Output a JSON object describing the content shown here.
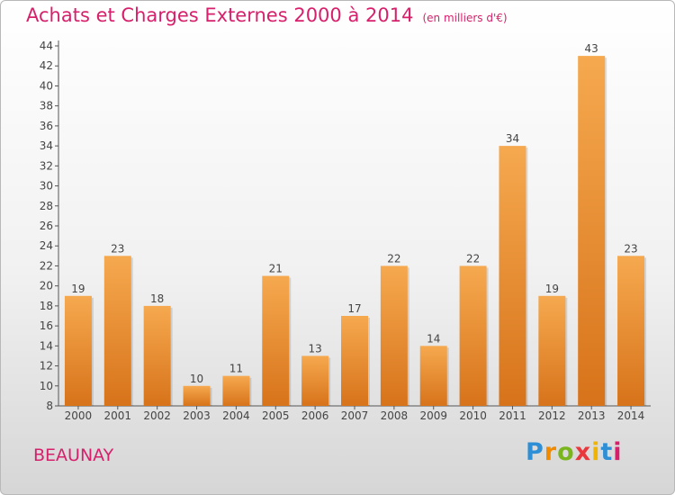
{
  "header": {
    "title": "Achats et Charges Externes 2000 à 2014",
    "subtitle": "(en milliers d'€)"
  },
  "commune": "BEAUNAY",
  "logo": {
    "text": "Proxiti",
    "letter_colors": [
      "#2e8fd6",
      "#f08a00",
      "#7ab51d",
      "#e8383d",
      "#f0b400",
      "#2e8fd6",
      "#d7206b"
    ]
  },
  "colors": {
    "bar_top": "#f6a94f",
    "bar_bottom": "#d7731a",
    "title": "#d7206b"
  },
  "chart_data": {
    "type": "bar",
    "title": "Achats et Charges Externes 2000 à 2014",
    "subtitle": "(en milliers d'€)",
    "categories": [
      "2000",
      "2001",
      "2002",
      "2003",
      "2004",
      "2005",
      "2006",
      "2007",
      "2008",
      "2009",
      "2010",
      "2011",
      "2012",
      "2013",
      "2014"
    ],
    "values": [
      19,
      23,
      18,
      10,
      11,
      21,
      13,
      17,
      22,
      14,
      22,
      34,
      19,
      43,
      23
    ],
    "ylim": [
      8,
      44
    ],
    "yticks": [
      8,
      10,
      12,
      14,
      16,
      18,
      20,
      22,
      24,
      26,
      28,
      30,
      32,
      34,
      36,
      38,
      40,
      42,
      44
    ],
    "grid": false,
    "legend": "none",
    "data_labels": true
  }
}
